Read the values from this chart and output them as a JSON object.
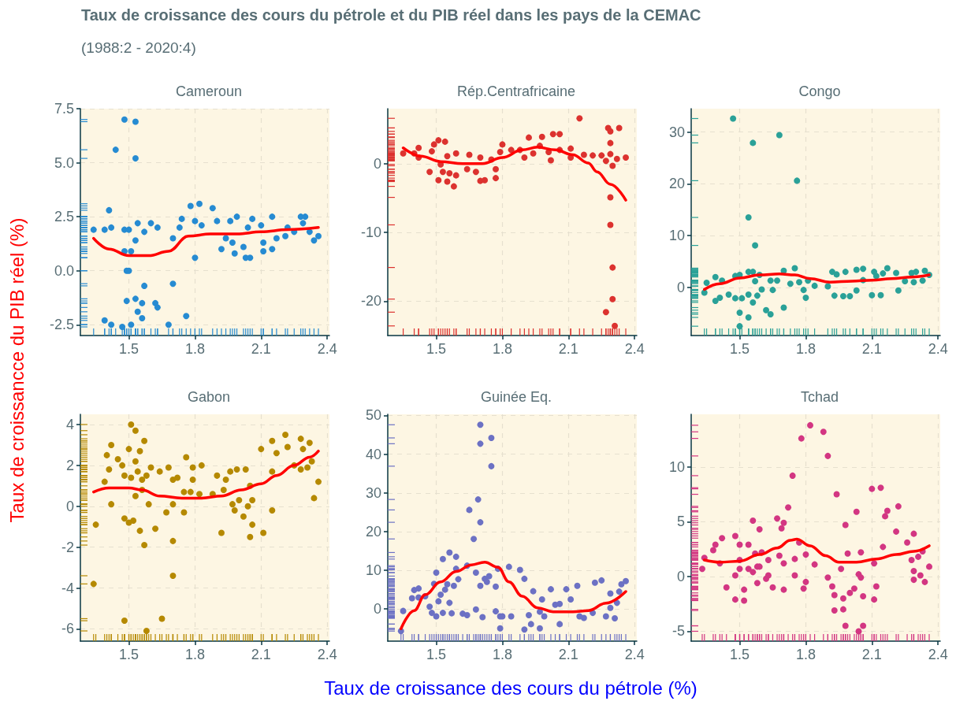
{
  "chart_data": [
    {
      "type": "other",
      "title": "Taux de croissance des cours du pétrole et du PIB réel dans les pays de la CEMAC",
      "subtitle": "(1988:2 - 2020:4)",
      "xlabel": "Taux de croissance des cours du pétrole (%)",
      "ylabel": "Taux de croissancce du PIB réel (%)"
    },
    {
      "type": "scatter",
      "title": "Cameroun",
      "xlim": [
        1.28,
        2.41
      ],
      "xticks": [
        1.5,
        1.8,
        2.1,
        2.4
      ],
      "ylim": [
        -3,
        7.5
      ],
      "yticks": [
        -2.5,
        {
          "value": 0,
          "label": "0.0"
        },
        2.5,
        {
          "value": 5,
          "label": "5.0"
        },
        7.5
      ],
      "grid": true,
      "series": [
        {
          "type": "scatter",
          "marker": "circle",
          "color": "#268bd2",
          "x": [
            1.34,
            1.39,
            1.41,
            1.42,
            1.39,
            1.42,
            1.44,
            1.47,
            1.48,
            1.48,
            1.48,
            1.49,
            1.5,
            1.49,
            1.51,
            1.5,
            1.53,
            1.53,
            1.53,
            1.53,
            1.54,
            1.51,
            1.54,
            1.56,
            1.57,
            1.56,
            1.57,
            1.6,
            1.62,
            1.63,
            1.63,
            1.68,
            1.7,
            1.7,
            1.73,
            1.74,
            1.76,
            1.78,
            1.8,
            1.8,
            1.82,
            1.83,
            1.88,
            1.9,
            1.92,
            1.94,
            1.96,
            1.99,
            1.98,
            1.97,
            2.02,
            2.03,
            2.05,
            2.06,
            2.04,
            2.1,
            2.11,
            2.11,
            2.15,
            2.15,
            2.17,
            2.21,
            2.22,
            2.25,
            2.28,
            2.3,
            2.29,
            2.32,
            2.34,
            2.36
          ],
          "values": [
            1.9,
            1.9,
            2.8,
            2.0,
            -2.3,
            -2.5,
            5.6,
            -2.6,
            7.0,
            1.9,
            0.9,
            0.0,
            0.0,
            -1.4,
            0.9,
            1.9,
            6.9,
            5.2,
            1.4,
            -1.3,
            2.2,
            -2.5,
            -1.9,
            -1.5,
            -0.7,
            -2.2,
            1.8,
            2.2,
            -1.5,
            -1.7,
            2.0,
            -2.5,
            -0.6,
            1.5,
            2.0,
            2.4,
            -2.1,
            3.0,
            0.6,
            2.3,
            3.1,
            2.1,
            2.9,
            2.3,
            1.0,
            1.5,
            2.3,
            2.5,
            0.8,
            1.3,
            1.1,
            0.6,
            0.6,
            2.4,
            2.0,
            2.1,
            0.9,
            1.3,
            2.5,
            1.0,
            1.5,
            1.6,
            2.0,
            1.8,
            2.5,
            2.5,
            2.2,
            1.8,
            1.4,
            1.6
          ]
        },
        {
          "type": "line",
          "color": "#ff0000",
          "x": [
            1.34,
            1.41,
            1.5,
            1.59,
            1.68,
            1.77,
            1.87,
            1.99,
            2.1,
            2.22,
            2.36
          ],
          "values": [
            1.5,
            1.0,
            0.7,
            0.7,
            0.9,
            1.6,
            1.7,
            1.7,
            1.8,
            1.9,
            2.0
          ]
        }
      ]
    },
    {
      "type": "scatter",
      "title": "Rép.Centrafricaine",
      "xlim": [
        1.28,
        2.41
      ],
      "xticks": [
        1.5,
        1.8,
        2.1,
        2.4
      ],
      "ylim": [
        -25,
        8
      ],
      "yticks": [
        -20,
        -10,
        0
      ],
      "grid": true,
      "series": [
        {
          "type": "scatter",
          "marker": "circle",
          "color": "#dc322f",
          "x": [
            1.35,
            1.4,
            1.42,
            1.42,
            1.47,
            1.48,
            1.49,
            1.51,
            1.51,
            1.52,
            1.53,
            1.54,
            1.55,
            1.55,
            1.56,
            1.58,
            1.59,
            1.59,
            1.64,
            1.65,
            1.68,
            1.7,
            1.7,
            1.72,
            1.75,
            1.77,
            1.77,
            1.79,
            1.8,
            1.84,
            1.88,
            1.9,
            1.92,
            1.94,
            1.98,
            1.97,
            2.01,
            2.02,
            2.03,
            2.06,
            2.06,
            2.11,
            2.11,
            2.15,
            2.17,
            2.21,
            2.25,
            2.28,
            2.29,
            2.29,
            2.29,
            2.27,
            2.3,
            2.33,
            2.29,
            2.29,
            2.3,
            2.3,
            2.27,
            2.31,
            2.36,
            2.32
          ],
          "values": [
            1.5,
            1.5,
            2.3,
            0.9,
            -1.2,
            1.8,
            2.8,
            3.4,
            -2.4,
            -0.1,
            -1.2,
            3.2,
            1.1,
            -2.6,
            -1.4,
            -3.3,
            -1.7,
            1.5,
            -0.8,
            1.3,
            -1.2,
            -2.5,
            0.9,
            -2.4,
            0.6,
            -0.8,
            -2.1,
            1.7,
            2.8,
            2.0,
            2.0,
            0.9,
            3.8,
            1.5,
            3.9,
            2.6,
            1.7,
            0.5,
            4.3,
            4.3,
            2.0,
            0.9,
            2.2,
            6.6,
            1.3,
            1.2,
            1.2,
            5.2,
            4.7,
            3.0,
            1.4,
            0.4,
            -0.3,
            5.2,
            -4.9,
            -8.9,
            -15.1,
            -19.7,
            -21.6,
            -23.6,
            0.9,
            0.7
          ]
        },
        {
          "type": "line",
          "color": "#ff0000",
          "x": [
            1.35,
            1.43,
            1.52,
            1.62,
            1.71,
            1.8,
            1.89,
            1.96,
            2.04,
            2.12,
            2.19,
            2.23,
            2.29,
            2.36
          ],
          "values": [
            2.3,
            1.1,
            0.3,
            0.0,
            0.0,
            0.9,
            2.0,
            2.4,
            2.0,
            1.3,
            0.1,
            -1.2,
            -3.0,
            -5.3
          ]
        }
      ]
    },
    {
      "type": "scatter",
      "title": "Congo",
      "xlim": [
        1.28,
        2.41
      ],
      "xticks": [
        1.5,
        1.8,
        2.1,
        2.4
      ],
      "ylim": [
        -9.3,
        34.5
      ],
      "yticks": [
        0,
        10,
        20,
        30
      ],
      "grid": true,
      "series": [
        {
          "type": "scatter",
          "marker": "circle",
          "color": "#2aa198",
          "x": [
            1.34,
            1.35,
            1.39,
            1.39,
            1.41,
            1.42,
            1.45,
            1.47,
            1.48,
            1.48,
            1.5,
            1.5,
            1.51,
            1.5,
            1.54,
            1.54,
            1.54,
            1.54,
            1.56,
            1.56,
            1.57,
            1.56,
            1.57,
            1.58,
            1.6,
            1.59,
            1.62,
            1.64,
            1.64,
            1.65,
            1.67,
            1.68,
            1.7,
            1.7,
            1.73,
            1.75,
            1.76,
            1.77,
            1.79,
            1.8,
            1.81,
            1.84,
            1.9,
            1.92,
            1.93,
            1.94,
            1.97,
            1.98,
            2.0,
            2.03,
            2.03,
            2.06,
            2.06,
            2.1,
            2.11,
            2.12,
            2.14,
            2.15,
            2.17,
            2.21,
            2.22,
            2.25,
            2.28,
            2.3,
            2.29,
            2.33,
            2.34,
            2.36
          ],
          "values": [
            -1.0,
            0.9,
            -2.6,
            2.0,
            -2.0,
            1.3,
            -1.4,
            32.6,
            2.2,
            -2.1,
            -4.9,
            -7.5,
            -2.1,
            2.4,
            -5.8,
            13.5,
            -1.4,
            3.0,
            27.9,
            -2.9,
            8.1,
            3.0,
            1.2,
            -1.6,
            -0.4,
            2.4,
            -4.4,
            -5.2,
            1.3,
            -0.5,
            1.3,
            29.4,
            -3.9,
            3.2,
            0.7,
            3.7,
            20.6,
            1.0,
            -0.5,
            -2.0,
            1.3,
            0.3,
            0.2,
            3.0,
            -1.6,
            2.5,
            -1.7,
            3.0,
            -1.7,
            3.4,
            -0.6,
            3.6,
            1.4,
            -1.5,
            3.0,
            2.2,
            -1.5,
            2.7,
            3.7,
            2.8,
            -0.6,
            1.2,
            2.8,
            3.0,
            1.0,
            1.3,
            3.2,
            2.4
          ]
        },
        {
          "type": "line",
          "color": "#ff0000",
          "x": [
            1.34,
            1.41,
            1.5,
            1.59,
            1.68,
            1.75,
            1.82,
            1.91,
            2.01,
            2.1,
            2.19,
            2.28,
            2.36
          ],
          "values": [
            -0.4,
            0.7,
            1.8,
            2.4,
            2.6,
            2.4,
            1.7,
            1.0,
            1.2,
            1.4,
            1.7,
            2.0,
            2.4
          ]
        }
      ]
    },
    {
      "type": "scatter",
      "title": "Gabon",
      "xlim": [
        1.28,
        2.41
      ],
      "xticks": [
        1.5,
        1.8,
        2.1,
        2.4
      ],
      "ylim": [
        -6.6,
        4.5
      ],
      "yticks": [
        -6,
        -4,
        -2,
        0,
        2,
        4
      ],
      "grid": true,
      "series": [
        {
          "type": "scatter",
          "marker": "circle",
          "color": "#b58900",
          "x": [
            1.35,
            1.34,
            1.39,
            1.4,
            1.41,
            1.42,
            1.42,
            1.45,
            1.47,
            1.48,
            1.48,
            1.48,
            1.5,
            1.5,
            1.51,
            1.51,
            1.52,
            1.53,
            1.53,
            1.53,
            1.54,
            1.55,
            1.55,
            1.56,
            1.56,
            1.57,
            1.57,
            1.58,
            1.58,
            1.59,
            1.6,
            1.62,
            1.64,
            1.65,
            1.67,
            1.68,
            1.7,
            1.7,
            1.7,
            1.7,
            1.72,
            1.75,
            1.75,
            1.76,
            1.78,
            1.79,
            1.79,
            1.82,
            1.83,
            1.88,
            1.9,
            1.92,
            1.93,
            1.94,
            1.96,
            1.97,
            1.98,
            1.99,
            2.0,
            2.02,
            2.03,
            2.04,
            2.05,
            2.05,
            2.06,
            2.06,
            2.1,
            2.11,
            2.15,
            2.15,
            2.15,
            2.17,
            2.21,
            2.22,
            2.25,
            2.28,
            2.29,
            2.28,
            2.31,
            2.32,
            2.33,
            2.34,
            2.36
          ],
          "values": [
            -0.9,
            -3.8,
            1.2,
            2.5,
            1.8,
            0.1,
            3.0,
            2.3,
            2.0,
            -0.6,
            -5.6,
            1.5,
            -0.8,
            2.8,
            1.4,
            4.0,
            -0.7,
            0.5,
            3.7,
            2.2,
            1.7,
            2.7,
            -1.2,
            0.8,
            1.3,
            3.2,
            -1.9,
            1.5,
            -6.1,
            0.1,
            1.9,
            -1.1,
            1.7,
            -5.5,
            -0.3,
            1.9,
            -1.7,
            -3.4,
            0.1,
            1.3,
            1.4,
            -0.3,
            0.7,
            2.4,
            0.7,
            1.9,
            1.3,
            0.6,
            2.0,
            0.6,
            1.5,
            -1.3,
            0.8,
            1.3,
            1.7,
            0.1,
            -0.2,
            1.8,
            0.3,
            -0.5,
            1.8,
            0.0,
            -1.5,
            1.0,
            -0.9,
            0.3,
            2.8,
            -1.3,
            3.2,
            1.7,
            -0.2,
            2.6,
            3.5,
            2.9,
            2.0,
            3.3,
            2.8,
            1.8,
            1.9,
            3.1,
            2.2,
            0.4,
            1.2
          ]
        },
        {
          "type": "line",
          "color": "#ff0000",
          "x": [
            1.34,
            1.41,
            1.5,
            1.56,
            1.64,
            1.74,
            1.83,
            1.92,
            2.01,
            2.1,
            2.17,
            2.25,
            2.32,
            2.36
          ],
          "values": [
            0.7,
            0.9,
            0.9,
            0.8,
            0.5,
            0.4,
            0.4,
            0.5,
            0.8,
            1.1,
            1.5,
            2.0,
            2.4,
            2.7
          ]
        }
      ]
    },
    {
      "type": "scatter",
      "title": "Guinée Eq.",
      "xlim": [
        1.28,
        2.41
      ],
      "xticks": [
        1.5,
        1.8,
        2.1,
        2.4
      ],
      "ylim": [
        -8.3,
        50.3
      ],
      "yticks": [
        0,
        10,
        20,
        30,
        40,
        50
      ],
      "grid": true,
      "series": [
        {
          "type": "scatter",
          "marker": "circle",
          "color": "#6c71c4",
          "x": [
            1.34,
            1.35,
            1.39,
            1.4,
            1.42,
            1.42,
            1.45,
            1.47,
            1.48,
            1.49,
            1.5,
            1.5,
            1.51,
            1.52,
            1.53,
            1.53,
            1.54,
            1.55,
            1.56,
            1.56,
            1.57,
            1.58,
            1.59,
            1.59,
            1.6,
            1.62,
            1.64,
            1.64,
            1.65,
            1.67,
            1.68,
            1.68,
            1.69,
            1.7,
            1.7,
            1.7,
            1.7,
            1.71,
            1.72,
            1.73,
            1.74,
            1.75,
            1.75,
            1.77,
            1.77,
            1.78,
            1.79,
            1.79,
            1.8,
            1.83,
            1.84,
            1.88,
            1.9,
            1.9,
            1.92,
            1.93,
            1.94,
            1.97,
            1.98,
            1.97,
            1.99,
            2.02,
            2.04,
            2.06,
            2.06,
            2.09,
            2.11,
            2.14,
            2.15,
            2.17,
            2.21,
            2.22,
            2.25,
            2.27,
            2.29,
            2.29,
            2.31,
            2.32,
            2.33,
            2.34,
            2.36
          ],
          "values": [
            -5.7,
            -0.5,
            2.8,
            4.9,
            5.3,
            3.0,
            3.3,
            0.6,
            -1.0,
            6.5,
            -1.9,
            9.4,
            2.0,
            3.7,
            12.9,
            -1.0,
            5.0,
            6.4,
            14.6,
            1.6,
            -1.1,
            6.0,
            13.5,
            10.4,
            7.7,
            -1.2,
            -1.6,
            11.2,
            25.6,
            18.1,
            9.4,
            -0.1,
            28.3,
            47.6,
            42.7,
            22.4,
            6.0,
            -2.1,
            7.8,
            7.0,
            8.5,
            36.9,
            44.2,
            5.8,
            -0.6,
            10.4,
            -5.0,
            -1.9,
            -1.9,
            10.9,
            -1.9,
            10.1,
            7.8,
            -5.3,
            -1.6,
            -3.9,
            4.6,
            -5.0,
            2.5,
            -0.7,
            -1.9,
            5.1,
            1.1,
            -3.9,
            1.3,
            5.1,
            2.5,
            6.0,
            -1.9,
            -2.3,
            -1.0,
            6.8,
            7.4,
            -1.9,
            4.0,
            0.3,
            -2.4,
            1.6,
            4.5,
            6.4,
            7.2
          ]
        },
        {
          "type": "line",
          "color": "#ff0000",
          "x": [
            1.34,
            1.4,
            1.45,
            1.52,
            1.59,
            1.66,
            1.72,
            1.78,
            1.83,
            1.89,
            1.96,
            2.03,
            2.12,
            2.19,
            2.27,
            2.36
          ],
          "values": [
            -5.1,
            -0.4,
            3.7,
            7.0,
            9.7,
            11.4,
            12.1,
            10.8,
            7.0,
            3.3,
            0.3,
            -0.7,
            -0.7,
            -0.4,
            1.5,
            4.5
          ]
        }
      ]
    },
    {
      "type": "scatter",
      "title": "Tchad",
      "xlim": [
        1.28,
        2.41
      ],
      "xticks": [
        1.5,
        1.8,
        2.1,
        2.4
      ],
      "ylim": [
        -5.9,
        14.8
      ],
      "yticks": [
        -5,
        0,
        5,
        10
      ],
      "grid": true,
      "series": [
        {
          "type": "scatter",
          "marker": "circle",
          "color": "#d33682",
          "x": [
            1.33,
            1.34,
            1.38,
            1.39,
            1.41,
            1.42,
            1.44,
            1.48,
            1.48,
            1.48,
            1.5,
            1.5,
            1.5,
            1.52,
            1.52,
            1.54,
            1.54,
            1.56,
            1.56,
            1.57,
            1.58,
            1.58,
            1.59,
            1.59,
            1.6,
            1.62,
            1.63,
            1.63,
            1.65,
            1.67,
            1.68,
            1.69,
            1.7,
            1.7,
            1.7,
            1.72,
            1.74,
            1.75,
            1.75,
            1.77,
            1.78,
            1.79,
            1.8,
            1.8,
            1.82,
            1.84,
            1.88,
            1.9,
            1.9,
            1.92,
            1.93,
            1.93,
            1.94,
            1.96,
            1.97,
            1.97,
            1.98,
            1.98,
            1.99,
            2.0,
            2.02,
            2.03,
            2.04,
            2.04,
            2.05,
            2.05,
            2.06,
            2.06,
            2.1,
            2.11,
            2.12,
            2.11,
            2.14,
            2.15,
            2.16,
            2.17,
            2.21,
            2.22,
            2.26,
            2.28,
            2.29,
            2.29,
            2.29,
            2.31,
            2.32,
            2.33,
            2.34,
            2.36
          ],
          "values": [
            0.7,
            1.7,
            2.4,
            2.9,
            1.2,
            3.5,
            -1.0,
            3.7,
            -2.1,
            0.1,
            2.9,
            1.5,
            0.7,
            -2.2,
            -1.2,
            2.9,
            0.7,
            5.1,
            0.4,
            2.1,
            0.9,
            -0.6,
            0.9,
            4.3,
            2.2,
            -0.2,
            1.5,
            0.1,
            -1.0,
            5.3,
            1.9,
            4.4,
            -1.2,
            1.2,
            4.9,
            6.3,
            9.2,
            0.1,
            1.6,
            3.1,
            12.6,
            -1.1,
            2.0,
            -0.5,
            13.8,
            1.1,
            13.2,
            11.0,
            -0.1,
            -0.9,
            -1.7,
            -3.1,
            7.5,
            0.7,
            -2.0,
            -3.0,
            4.7,
            -4.5,
            2.1,
            -1.5,
            -1.1,
            5.9,
            -5.0,
            0.2,
            -0.1,
            2.2,
            -1.8,
            -4.5,
            8.0,
            -2.1,
            -0.9,
            1.2,
            8.1,
            2.7,
            5.5,
            6.0,
            4.1,
            6.4,
            3.1,
            1.5,
            3.9,
            0.5,
            -0.3,
            1.8,
            0.1,
            2.3,
            -0.5,
            0.9
          ]
        },
        {
          "type": "line",
          "color": "#ff0000",
          "x": [
            1.34,
            1.41,
            1.5,
            1.59,
            1.67,
            1.73,
            1.76,
            1.82,
            1.89,
            1.95,
            2.03,
            2.12,
            2.21,
            2.29,
            2.36
          ],
          "values": [
            1.5,
            1.3,
            1.4,
            2.0,
            2.6,
            3.3,
            3.4,
            2.8,
            1.9,
            1.3,
            1.3,
            1.6,
            2.0,
            2.3,
            2.8
          ]
        }
      ]
    }
  ]
}
